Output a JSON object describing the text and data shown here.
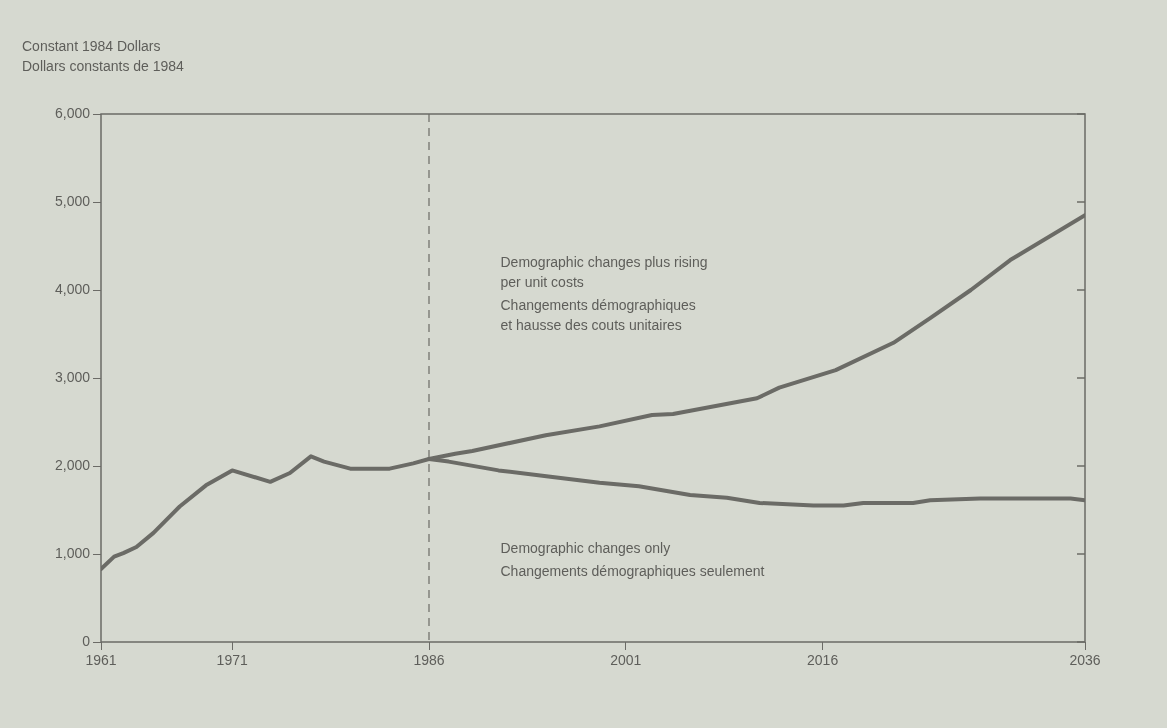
{
  "chart_data": {
    "type": "line",
    "ylabel": "Constant 1984 Dollars\nDollars constants de 1984",
    "xlim": [
      1961,
      2036
    ],
    "xticks": [
      1961,
      1971,
      1986,
      2001,
      2016,
      2036
    ],
    "ylim": [
      0,
      6000
    ],
    "yticks": [
      {
        "value": 0,
        "label": "0"
      },
      {
        "value": 1000,
        "label": "1,000"
      },
      {
        "value": 2000,
        "label": "2,000"
      },
      {
        "value": 3000,
        "label": "3,000"
      },
      {
        "value": 4000,
        "label": "4,000"
      },
      {
        "value": 5000,
        "label": "5,000"
      },
      {
        "value": 6000,
        "label": "6,000"
      }
    ],
    "grid": false,
    "legend": false,
    "marker": "none",
    "line_style": "solid",
    "series": [
      {
        "color": "#6b6b66",
        "x": [
          1961,
          1962,
          1962.7,
          1963.7,
          1965,
          1967,
          1969,
          1971,
          1973.9,
          1975.4,
          1977,
          1978,
          1980,
          1983,
          1984.8,
          1986,
          1988,
          1989.3,
          1994.9,
          1999,
          2003,
          2004.6,
          2011,
          2012.7,
          2017,
          2021.4,
          2024.2,
          2027.3,
          2030.3,
          2036
        ],
        "values": [
          830,
          970,
          1010,
          1080,
          1240,
          1540,
          1780,
          1950,
          1820,
          1920,
          2110,
          2050,
          1970,
          1970,
          2030,
          2080,
          2140,
          2170,
          2350,
          2450,
          2580,
          2590,
          2770,
          2890,
          3090,
          3400,
          3680,
          4000,
          4340,
          4850
        ]
      },
      {
        "color": "#6b6b66",
        "x": [
          1986,
          1987.5,
          1991.3,
          1995.1,
          1999,
          2002,
          2005.9,
          2008.7,
          2011.2,
          2015.3,
          2017.6,
          2019.1,
          2022.9,
          2024.2,
          2028,
          2034.9,
          2036
        ],
        "values": [
          2080,
          2050,
          1950,
          1880,
          1810,
          1770,
          1670,
          1640,
          1580,
          1550,
          1550,
          1580,
          1580,
          1610,
          1630,
          1630,
          1610
        ]
      }
    ],
    "ref_lines": [
      {
        "axis": "x",
        "value": 1986,
        "line_style": "dashed",
        "color": "#6b6b66"
      }
    ],
    "annotations": [
      "Demographic changes plus rising\nper unit costs\nChangements démographiques\net hausse des couts unitaires",
      "Demographic changes only\nChangements démographiques seulement"
    ]
  }
}
